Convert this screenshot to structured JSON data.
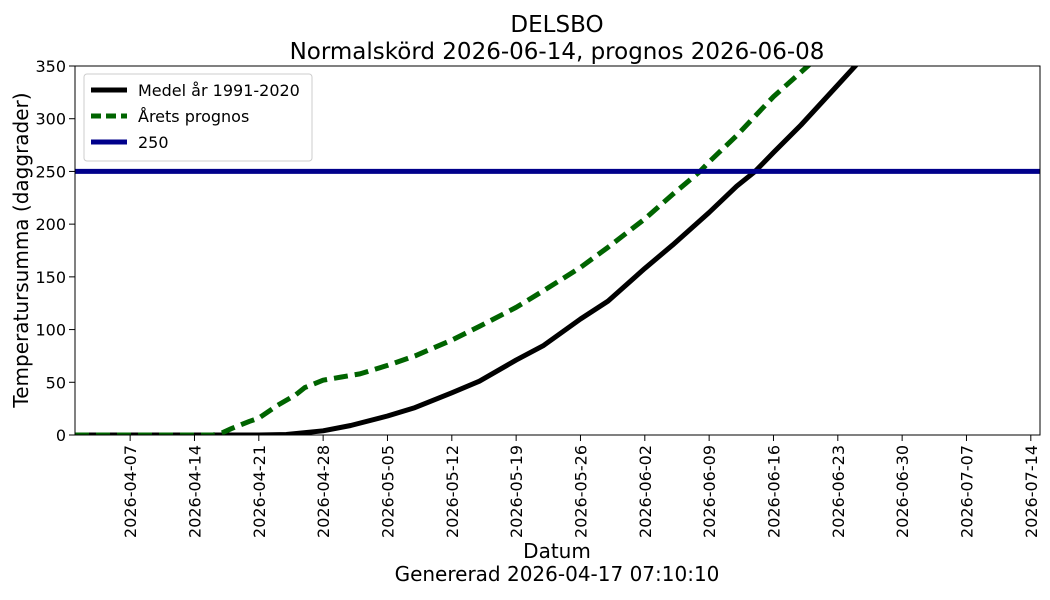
{
  "chart_data": {
    "type": "line",
    "title": "DELSBO",
    "subtitle": "Normalskörd 2026-06-14, prognos 2026-06-08",
    "xlabel": "Datum",
    "ylabel": "Temperatursumma (daggrader)",
    "footer": "Genererad 2026-04-17 07:10:10",
    "xlim": [
      "2026-04-01",
      "2026-07-15"
    ],
    "ylim": [
      0,
      350
    ],
    "x_ticks": [
      "2026-04-07",
      "2026-04-14",
      "2026-04-21",
      "2026-04-28",
      "2026-05-05",
      "2026-05-12",
      "2026-05-19",
      "2026-05-26",
      "2026-06-02",
      "2026-06-09",
      "2026-06-16",
      "2026-06-23",
      "2026-06-30",
      "2026-07-07",
      "2026-07-14"
    ],
    "y_ticks": [
      0,
      50,
      100,
      150,
      200,
      250,
      300,
      350
    ],
    "grid": false,
    "legend_position": "top-left",
    "series": [
      {
        "name": "Medel år 1991-2020",
        "color": "#000000",
        "style": "solid",
        "points": [
          [
            "2026-04-01",
            0
          ],
          [
            "2026-04-21",
            0
          ],
          [
            "2026-04-24",
            0.5
          ],
          [
            "2026-04-28",
            4
          ],
          [
            "2026-05-01",
            9
          ],
          [
            "2026-05-05",
            18
          ],
          [
            "2026-05-08",
            26
          ],
          [
            "2026-05-12",
            40
          ],
          [
            "2026-05-15",
            51
          ],
          [
            "2026-05-19",
            71
          ],
          [
            "2026-05-22",
            85
          ],
          [
            "2026-05-26",
            110
          ],
          [
            "2026-05-29",
            127
          ],
          [
            "2026-06-02",
            158
          ],
          [
            "2026-06-05",
            180
          ],
          [
            "2026-06-09",
            211
          ],
          [
            "2026-06-12",
            236
          ],
          [
            "2026-06-14",
            250
          ],
          [
            "2026-06-16",
            268
          ],
          [
            "2026-06-19",
            294
          ],
          [
            "2026-06-23",
            332
          ],
          [
            "2026-06-25",
            351
          ]
        ]
      },
      {
        "name": "Årets prognos",
        "color": "#006400",
        "style": "dashed",
        "points": [
          [
            "2026-04-01",
            0
          ],
          [
            "2026-04-16",
            0
          ],
          [
            "2026-04-17",
            2
          ],
          [
            "2026-04-18",
            6
          ],
          [
            "2026-04-20",
            13
          ],
          [
            "2026-04-21",
            16
          ],
          [
            "2026-04-23",
            28
          ],
          [
            "2026-04-25",
            38
          ],
          [
            "2026-04-26",
            45
          ],
          [
            "2026-04-28",
            52
          ],
          [
            "2026-04-30",
            55
          ],
          [
            "2026-05-02",
            58
          ],
          [
            "2026-05-05",
            66
          ],
          [
            "2026-05-08",
            75
          ],
          [
            "2026-05-12",
            90
          ],
          [
            "2026-05-15",
            103
          ],
          [
            "2026-05-19",
            121
          ],
          [
            "2026-05-22",
            137
          ],
          [
            "2026-05-26",
            159
          ],
          [
            "2026-05-29",
            178
          ],
          [
            "2026-06-02",
            205
          ],
          [
            "2026-06-05",
            228
          ],
          [
            "2026-06-08",
            250
          ],
          [
            "2026-06-09",
            259
          ],
          [
            "2026-06-12",
            284
          ],
          [
            "2026-06-16",
            321
          ],
          [
            "2026-06-20",
            352
          ]
        ]
      },
      {
        "name": "250",
        "color": "#00008b",
        "style": "solid",
        "points": [
          [
            "2026-04-01",
            250
          ],
          [
            "2026-07-15",
            250
          ]
        ]
      }
    ]
  }
}
